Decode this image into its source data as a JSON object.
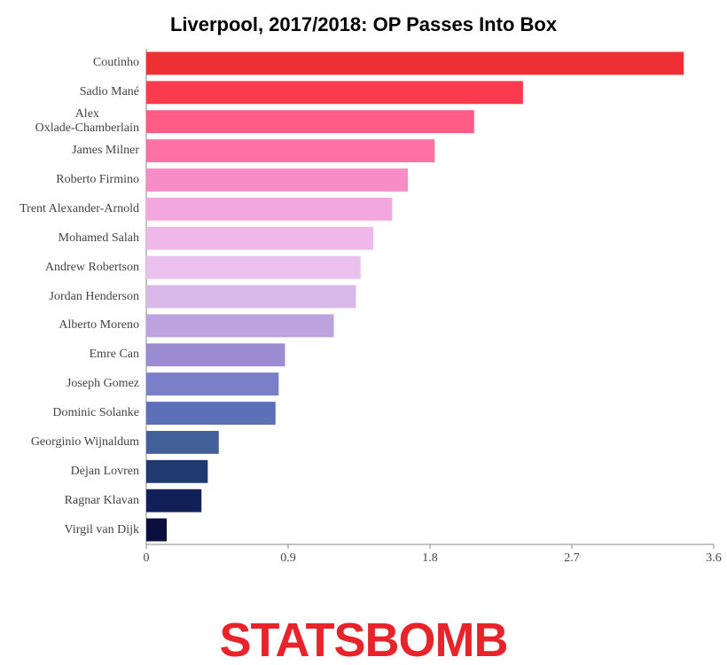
{
  "chart_data": {
    "type": "barh",
    "title": "Liverpool, 2017/2018: OP Passes Into Box",
    "categories": [
      "Coutinho",
      "Sadio Mané",
      "Alex\nOxlade-Chamberlain",
      "James Milner",
      "Roberto Firmino",
      "Trent Alexander-Arnold",
      "Mohamed Salah",
      "Andrew Robertson",
      "Jordan Henderson",
      "Alberto Moreno",
      "Emre Can",
      "Joseph Gomez",
      "Dominic Solanke",
      "Georginio Wijnaldum",
      "Dejan Lovren",
      "Ragnar Klavan",
      "Virgil van Dijk"
    ],
    "values": [
      3.41,
      2.39,
      2.08,
      1.83,
      1.66,
      1.56,
      1.44,
      1.36,
      1.33,
      1.19,
      0.88,
      0.84,
      0.82,
      0.46,
      0.39,
      0.35,
      0.13
    ],
    "colors": [
      "#ee3035",
      "#fb3a4d",
      "#ff5c85",
      "#fd72a3",
      "#f78cc6",
      "#f2a8de",
      "#f0b8ea",
      "#ebc0ee",
      "#d8b8e8",
      "#bca2de",
      "#9b8cd2",
      "#7b7ec8",
      "#5c70b8",
      "#42609a",
      "#1f3a6e",
      "#122058",
      "#0a0f3f"
    ],
    "xlim": [
      0,
      3.6
    ],
    "xticks": [
      0,
      0.9,
      1.8,
      2.7,
      3.6
    ],
    "logo": "STATSBOMB"
  }
}
